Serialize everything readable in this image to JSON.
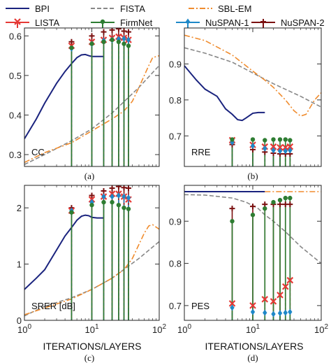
{
  "legend": [
    {
      "name": "BPI",
      "color": "#1a237e",
      "style": "solid",
      "marker": "none"
    },
    {
      "name": "FISTA",
      "color": "#888888",
      "style": "dashed",
      "marker": "none"
    },
    {
      "name": "SBL-EM",
      "color": "#f08c2e",
      "style": "dashdot",
      "marker": "none"
    },
    {
      "name": "LISTA",
      "color": "#e53935",
      "style": "solid",
      "marker": "x"
    },
    {
      "name": "FirmNet",
      "color": "#2e7d32",
      "style": "solid",
      "marker": "dot"
    },
    {
      "name": "NuSPAN-1",
      "color": "#1e88c8",
      "style": "solid",
      "marker": "diamond"
    },
    {
      "name": "NuSPAN-2",
      "color": "#7b1010",
      "style": "solid",
      "marker": "plus"
    }
  ],
  "xlabel": "ITERATIONS/LAYERS",
  "chart_data": [
    {
      "type": "line",
      "panel": "(a)",
      "metric_label": "CC",
      "xscale": "log",
      "xlim": [
        1,
        100
      ],
      "ylim": [
        0.27,
        0.62
      ],
      "xticks": [
        "",
        "",
        ""
      ],
      "yticks": [
        0.3,
        0.4,
        0.5,
        0.6
      ],
      "ytick_labels": [
        "0.3",
        "0.4",
        "0.5",
        "0.6"
      ],
      "curves": [
        {
          "name": "BPI",
          "x": [
            1,
            1.5,
            2,
            3,
            4,
            5,
            6,
            7,
            8,
            9,
            10,
            12,
            15
          ],
          "y": [
            0.34,
            0.39,
            0.43,
            0.48,
            0.51,
            0.53,
            0.545,
            0.552,
            0.553,
            0.55,
            0.548,
            0.548,
            0.548
          ]
        },
        {
          "name": "FISTA",
          "x": [
            1,
            2,
            5,
            10,
            20,
            50,
            100
          ],
          "y": [
            0.275,
            0.3,
            0.335,
            0.365,
            0.405,
            0.47,
            0.525
          ]
        },
        {
          "name": "SBL-EM",
          "x": [
            1,
            2,
            5,
            10,
            20,
            30,
            40,
            50,
            60,
            70,
            80,
            100
          ],
          "y": [
            0.28,
            0.305,
            0.33,
            0.36,
            0.39,
            0.41,
            0.435,
            0.47,
            0.5,
            0.525,
            0.545,
            0.55
          ]
        }
      ],
      "layers": [
        5,
        10,
        15,
        20,
        25,
        30,
        35
      ],
      "stems": [
        {
          "name": "LISTA",
          "values": [
            0.575,
            0.585,
            0.59,
            0.595,
            0.598,
            0.595,
            0.59
          ]
        },
        {
          "name": "FirmNet",
          "values": [
            0.57,
            0.58,
            0.585,
            0.59,
            0.585,
            0.58,
            0.575
          ]
        },
        {
          "name": "NuSPAN-1",
          "values": [
            0.568,
            0.58,
            0.588,
            0.59,
            0.592,
            0.593,
            0.59
          ]
        },
        {
          "name": "NuSPAN-2",
          "values": [
            0.585,
            0.6,
            0.61,
            0.615,
            0.618,
            0.612,
            0.61
          ]
        }
      ]
    },
    {
      "type": "line",
      "panel": "(b)",
      "metric_label": "RRE",
      "xscale": "log",
      "xlim": [
        1,
        100
      ],
      "ylim": [
        0.615,
        1.0
      ],
      "xticks": [
        "",
        "",
        ""
      ],
      "yticks": [
        0.7,
        0.8,
        0.9
      ],
      "ytick_labels": [
        "0.7",
        "0.8",
        "0.9"
      ],
      "curves": [
        {
          "name": "BPI",
          "x": [
            1,
            1.5,
            2,
            3,
            4,
            5,
            6,
            7,
            8,
            10,
            12,
            15
          ],
          "y": [
            0.895,
            0.855,
            0.83,
            0.81,
            0.775,
            0.76,
            0.745,
            0.743,
            0.75,
            0.763,
            0.765,
            0.765
          ]
        },
        {
          "name": "FISTA",
          "x": [
            1,
            2,
            5,
            10,
            20,
            50,
            100
          ],
          "y": [
            0.945,
            0.93,
            0.905,
            0.875,
            0.845,
            0.81,
            0.78
          ]
        },
        {
          "name": "SBL-EM",
          "x": [
            1,
            2,
            5,
            10,
            15,
            20,
            30,
            40,
            50,
            60,
            80,
            100
          ],
          "y": [
            0.98,
            0.965,
            0.925,
            0.88,
            0.855,
            0.835,
            0.8,
            0.77,
            0.755,
            0.76,
            0.8,
            0.82
          ]
        }
      ],
      "layers": [
        5,
        10,
        15,
        20,
        25,
        30,
        35
      ],
      "stems": [
        {
          "name": "LISTA",
          "values": [
            0.688,
            0.675,
            0.67,
            0.67,
            0.668,
            0.668,
            0.67
          ]
        },
        {
          "name": "FirmNet",
          "values": [
            0.69,
            0.69,
            0.688,
            0.69,
            0.69,
            0.69,
            0.688
          ]
        },
        {
          "name": "NuSPAN-1",
          "values": [
            0.682,
            0.672,
            0.665,
            0.66,
            0.658,
            0.658,
            0.66
          ]
        },
        {
          "name": "NuSPAN-2",
          "values": [
            0.676,
            0.662,
            0.655,
            0.652,
            0.65,
            0.65,
            0.65
          ]
        }
      ]
    },
    {
      "type": "line",
      "panel": "(c)",
      "metric_label": "SRER [dB]",
      "xscale": "log",
      "xlim": [
        1,
        100
      ],
      "ylim": [
        0,
        2.4
      ],
      "xticks": [
        "10^0",
        "10^1",
        "10^2"
      ],
      "yticks": [
        0,
        1,
        2
      ],
      "ytick_labels": [
        "0",
        "1",
        "2"
      ],
      "curves": [
        {
          "name": "BPI",
          "x": [
            1,
            1.5,
            2,
            3,
            4,
            5,
            6,
            7,
            8,
            9,
            10,
            12,
            15
          ],
          "y": [
            0.55,
            0.75,
            0.9,
            1.25,
            1.5,
            1.65,
            1.78,
            1.85,
            1.87,
            1.86,
            1.83,
            1.82,
            1.82
          ]
        },
        {
          "name": "FISTA",
          "x": [
            1,
            2,
            5,
            10,
            20,
            50,
            100
          ],
          "y": [
            0.08,
            0.25,
            0.4,
            0.55,
            0.75,
            1.1,
            1.4
          ]
        },
        {
          "name": "SBL-EM",
          "x": [
            1,
            2,
            5,
            10,
            20,
            30,
            40,
            50,
            60,
            70,
            80,
            100
          ],
          "y": [
            0.1,
            0.22,
            0.38,
            0.55,
            0.75,
            0.9,
            1.1,
            1.35,
            1.55,
            1.68,
            1.7,
            1.62
          ]
        }
      ],
      "layers": [
        5,
        10,
        15,
        20,
        25,
        30,
        35
      ],
      "stems": [
        {
          "name": "LISTA",
          "values": [
            1.95,
            2.15,
            2.2,
            2.25,
            2.25,
            2.2,
            2.15
          ]
        },
        {
          "name": "FirmNet",
          "values": [
            1.92,
            2.05,
            2.1,
            2.1,
            2.05,
            2.0,
            1.98
          ]
        },
        {
          "name": "NuSPAN-1",
          "values": [
            1.95,
            2.1,
            2.2,
            2.2,
            2.22,
            2.2,
            2.18
          ]
        },
        {
          "name": "NuSPAN-2",
          "values": [
            2.0,
            2.22,
            2.3,
            2.35,
            2.38,
            2.36,
            2.35
          ]
        }
      ]
    },
    {
      "type": "line",
      "panel": "(d)",
      "metric_label": "PES",
      "xscale": "log",
      "xlim": [
        1,
        100
      ],
      "ylim": [
        0.665,
        0.985
      ],
      "xticks": [
        "10^0",
        "10^1",
        "10^2"
      ],
      "yticks": [
        0.7,
        0.8,
        0.9
      ],
      "ytick_labels": [
        "0.7",
        "0.8",
        "0.9"
      ],
      "curves": [
        {
          "name": "BPI",
          "x": [
            1,
            2,
            5,
            10,
            15
          ],
          "y": [
            0.97,
            0.97,
            0.97,
            0.97,
            0.97
          ]
        },
        {
          "name": "FISTA",
          "x": [
            1,
            2,
            5,
            8,
            12,
            15,
            20,
            30,
            50,
            100
          ],
          "y": [
            0.963,
            0.962,
            0.955,
            0.945,
            0.93,
            0.915,
            0.9,
            0.875,
            0.84,
            0.8
          ]
        },
        {
          "name": "SBL-EM",
          "x": [
            15,
            20,
            30,
            50,
            100
          ],
          "y": [
            0.97,
            0.97,
            0.97,
            0.97,
            0.97
          ]
        }
      ],
      "layers": [
        5,
        10,
        15,
        20,
        25,
        30,
        35
      ],
      "stems": [
        {
          "name": "LISTA",
          "values": [
            0.705,
            0.7,
            0.715,
            0.71,
            0.725,
            0.745,
            0.76
          ]
        },
        {
          "name": "FirmNet",
          "values": [
            0.9,
            0.915,
            0.93,
            0.945,
            0.95,
            0.955,
            0.955
          ]
        },
        {
          "name": "NuSPAN-1",
          "values": [
            0.695,
            0.685,
            0.683,
            0.68,
            0.682,
            0.683,
            0.685
          ]
        },
        {
          "name": "NuSPAN-2",
          "values": [
            0.93,
            0.935,
            0.94,
            0.94,
            0.94,
            0.94,
            0.94
          ]
        }
      ]
    }
  ]
}
